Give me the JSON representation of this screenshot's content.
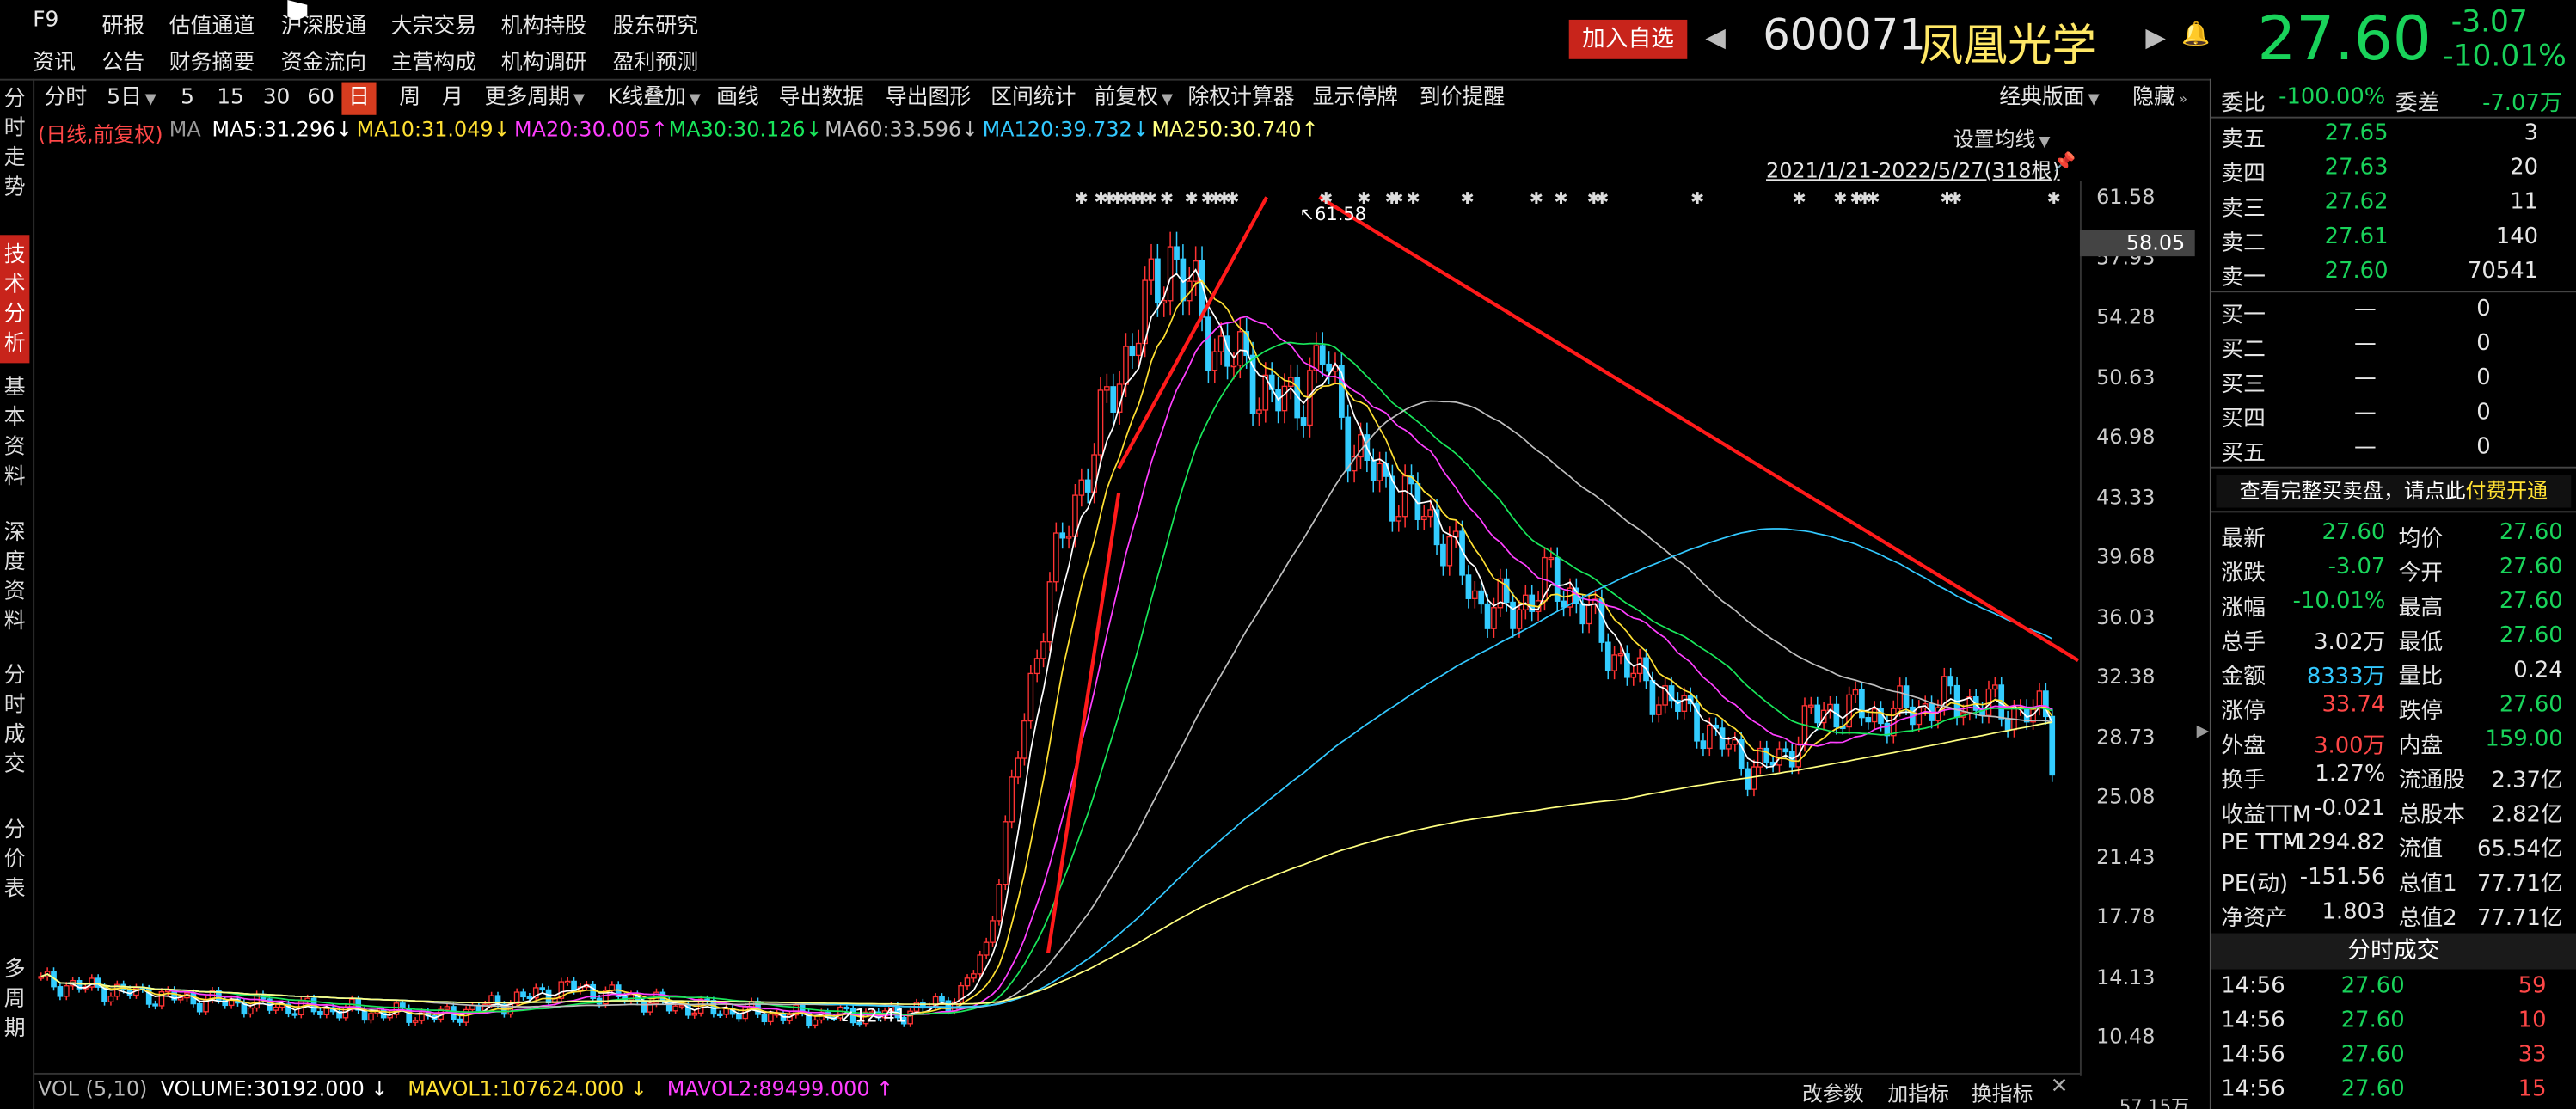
{
  "menu": {
    "row1": [
      "F9",
      "研报",
      "估值通道",
      "沪深股通",
      "大宗交易",
      "机构持股",
      "股东研究"
    ],
    "row2": [
      "资讯",
      "公告",
      "财务摘要",
      "资金流向",
      "主营构成",
      "机构调研",
      "盈利预测"
    ]
  },
  "header": {
    "add_watch": "加入自选",
    "code": "600071",
    "name": "凤凰光学",
    "price": "27.60",
    "change": "-3.07",
    "pct": "-10.01%"
  },
  "toolbar": {
    "items": [
      "分时",
      "5日",
      "5",
      "15",
      "30",
      "60",
      "日",
      "周",
      "月",
      "更多周期",
      "K线叠加",
      "画线",
      "导出数据",
      "导出图形",
      "区间统计",
      "前复权",
      "除权计算器",
      "显示停牌",
      "到价提醒"
    ],
    "layout": "经典版面",
    "hide": "隐藏"
  },
  "left_tabs": [
    "分时走势",
    "技术分析",
    "基本资料",
    "深度资料",
    "分时成交",
    "分价表",
    "多周期"
  ],
  "ma_line": {
    "label": "(日线,前复权)",
    "ma": "MA",
    "items": [
      {
        "t": "MA5:31.296",
        "arrow": "↓",
        "color": "#ffffff"
      },
      {
        "t": "MA10:31.049",
        "arrow": "↓",
        "color": "#ffe033"
      },
      {
        "t": "MA20:30.005",
        "arrow": "↑",
        "color": "#ff3fff"
      },
      {
        "t": "MA30:30.126",
        "arrow": "↓",
        "color": "#19e65a"
      },
      {
        "t": "MA60:33.596",
        "arrow": "↓",
        "color": "#bfbfbf"
      },
      {
        "t": "MA120:39.732",
        "arrow": "↓",
        "color": "#33c9ff"
      },
      {
        "t": "MA250:30.740",
        "arrow": "↑",
        "color": "#ffff80"
      }
    ]
  },
  "chart_ui": {
    "setting": "设置均线",
    "range": "2021/1/21-2022/5/27(318根)",
    "high_label": "61.58",
    "low_label": "12.41",
    "cursor_price": "58.05"
  },
  "y_axis": [
    "61.58",
    "57.93",
    "54.28",
    "50.63",
    "46.98",
    "43.33",
    "39.68",
    "36.03",
    "32.38",
    "28.73",
    "25.08",
    "21.43",
    "17.78",
    "14.13",
    "10.48"
  ],
  "volume": {
    "label": "VOL (5,10)",
    "vol": "VOLUME:30192.000",
    "v_arrow": "↓",
    "mavol1": "MAVOL1:107624.000",
    "m1_arrow": "↓",
    "mavol2": "MAVOL2:89499.000",
    "m2_arrow": "↑",
    "btns": [
      "改参数",
      "加指标",
      "换指标"
    ],
    "axis": "57.15万"
  },
  "committee": {
    "label1": "委比",
    "val1": "-100.00%",
    "label2": "委差",
    "val2": "-7.07万"
  },
  "asks": [
    {
      "l": "卖五",
      "p": "27.65",
      "v": "3"
    },
    {
      "l": "卖四",
      "p": "27.63",
      "v": "20"
    },
    {
      "l": "卖三",
      "p": "27.62",
      "v": "11"
    },
    {
      "l": "卖二",
      "p": "27.61",
      "v": "140"
    },
    {
      "l": "卖一",
      "p": "27.60",
      "v": "70541"
    }
  ],
  "bids": [
    {
      "l": "买一",
      "p": "—",
      "v": "0"
    },
    {
      "l": "买二",
      "p": "—",
      "v": "0"
    },
    {
      "l": "买三",
      "p": "—",
      "v": "0"
    },
    {
      "l": "买四",
      "p": "—",
      "v": "0"
    },
    {
      "l": "买五",
      "p": "—",
      "v": "0"
    }
  ],
  "banner": {
    "text": "查看完整买卖盘，请点此",
    "link": "付费开通"
  },
  "stats": [
    [
      "最新",
      "27.60",
      "g",
      "均价",
      "27.60",
      "g"
    ],
    [
      "涨跌",
      "-3.07",
      "g",
      "今开",
      "27.60",
      "g"
    ],
    [
      "涨幅",
      "-10.01%",
      "g",
      "最高",
      "27.60",
      "g"
    ],
    [
      "总手",
      "3.02万",
      "w",
      "最低",
      "27.60",
      "g"
    ],
    [
      "金额",
      "8333万",
      "c",
      "量比",
      "0.24",
      "w"
    ],
    [
      "涨停",
      "33.74",
      "r",
      "跌停",
      "27.60",
      "g"
    ],
    [
      "外盘",
      "3.00万",
      "r",
      "内盘",
      "159.00",
      "g"
    ],
    [
      "换手",
      "1.27%",
      "w",
      "流通股",
      "2.37亿",
      "w"
    ],
    [
      "收益TTM",
      "-0.021",
      "w",
      "总股本",
      "2.82亿",
      "w"
    ],
    [
      "PE TTM",
      "-1294.82",
      "w",
      "流值",
      "65.54亿",
      "w"
    ],
    [
      "PE(动)",
      "-151.56",
      "w",
      "总值1",
      "77.71亿",
      "w"
    ],
    [
      "净资产",
      "1.803",
      "w",
      "总值2",
      "77.71亿",
      "w"
    ]
  ],
  "ticks_title": "分时成交",
  "ticks": [
    {
      "t": "14:56",
      "p": "27.60",
      "v": "59"
    },
    {
      "t": "14:56",
      "p": "27.60",
      "v": "10"
    },
    {
      "t": "14:56",
      "p": "27.60",
      "v": "33"
    },
    {
      "t": "14:56",
      "p": "27.60",
      "v": "15"
    }
  ],
  "chart_data": {
    "type": "candlestick",
    "y_range": [
      10.48,
      61.58
    ],
    "high": 61.58,
    "low": 12.41,
    "last": 27.6,
    "annotation": "red trend lines: sharp rise then long descending line"
  }
}
